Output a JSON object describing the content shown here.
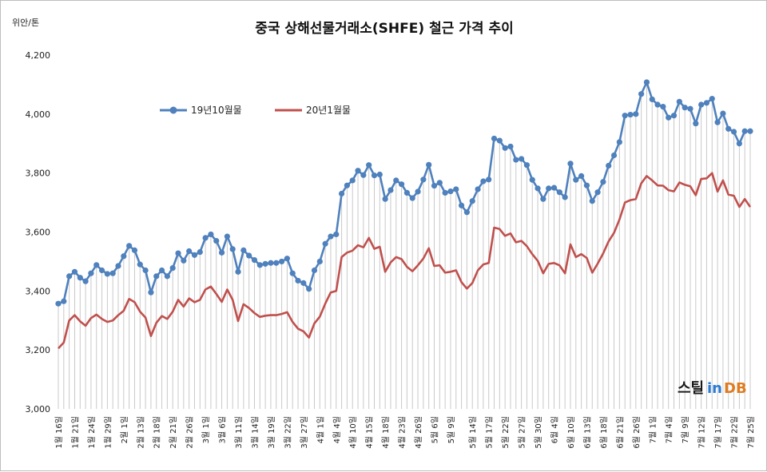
{
  "chart_data": {
    "type": "line",
    "title": "중국 상해선물거래소(SHFE) 철근 가격 추이",
    "ylabel": "위안/톤",
    "xlabel": "",
    "ylim": [
      3000,
      4200
    ],
    "yticks": [
      3000,
      3200,
      3400,
      3600,
      3800,
      4000,
      4200
    ],
    "ytick_labels": [
      "3,000",
      "3,200",
      "3,400",
      "3,600",
      "3,800",
      "4,000",
      "4,200"
    ],
    "grid": "vertical drop lines from series 1 points",
    "legend_position": "top-left",
    "x_tick_labels": [
      "1월 16일",
      "1월 21일",
      "1월 24일",
      "1월 29일",
      "2월 1일",
      "2월 13일",
      "2월 18일",
      "2월 21일",
      "2월 26일",
      "3월 1일",
      "3월 6일",
      "3월 11일",
      "3월 14일",
      "3월 19일",
      "3월 22일",
      "3월 27일",
      "4월 1일",
      "4월 4일",
      "4월 10일",
      "4월 15일",
      "4월 18일",
      "4월 23일",
      "4월 26일",
      "5월 6일",
      "5월 9일",
      "5월 14일",
      "5월 17일",
      "5월 22일",
      "5월 27일",
      "5월 30일",
      "6월 4일",
      "6월 10일",
      "6월 13일",
      "6월 18일",
      "6월 21일",
      "6월 26일",
      "7월 1일",
      "7월 4일",
      "7월 9일",
      "7월 12일",
      "7월 17일",
      "7월 22일",
      "7월 25일"
    ],
    "series": [
      {
        "name": "19년10월물",
        "color": "#4f81bd",
        "values": [
          3357,
          3365,
          3450,
          3465,
          3445,
          3433,
          3460,
          3488,
          3470,
          3458,
          3460,
          3485,
          3518,
          3553,
          3538,
          3490,
          3470,
          3395,
          3450,
          3470,
          3450,
          3478,
          3528,
          3503,
          3535,
          3522,
          3532,
          3580,
          3592,
          3570,
          3530,
          3585,
          3542,
          3465,
          3538,
          3520,
          3505,
          3488,
          3492,
          3495,
          3495,
          3500,
          3510,
          3460,
          3435,
          3427,
          3407,
          3470,
          3500,
          3560,
          3585,
          3592,
          3730,
          3758,
          3775,
          3808,
          3793,
          3827,
          3792,
          3795,
          3712,
          3742,
          3775,
          3762,
          3733,
          3715,
          3737,
          3778,
          3828,
          3757,
          3767,
          3733,
          3738,
          3745,
          3690,
          3667,
          3705,
          3745,
          3772,
          3778,
          3917,
          3910,
          3885,
          3890,
          3845,
          3848,
          3827,
          3777,
          3748,
          3712,
          3748,
          3750,
          3735,
          3718,
          3832,
          3777,
          3790,
          3758,
          3705,
          3735,
          3770,
          3825,
          3860,
          3905,
          3995,
          3998,
          4000,
          4068,
          4108,
          4050,
          4032,
          4025,
          3988,
          3995,
          4042,
          4022,
          4018,
          3968,
          4032,
          4038,
          4052,
          3972,
          4002,
          3950,
          3940,
          3900,
          3942,
          3942
        ]
      },
      {
        "name": "20년1월물",
        "color": "#c0504d",
        "values": [
          3205,
          3225,
          3300,
          3318,
          3297,
          3282,
          3308,
          3320,
          3305,
          3295,
          3300,
          3318,
          3333,
          3373,
          3362,
          3330,
          3310,
          3247,
          3292,
          3315,
          3305,
          3330,
          3370,
          3347,
          3375,
          3362,
          3370,
          3405,
          3415,
          3390,
          3363,
          3405,
          3370,
          3298,
          3355,
          3342,
          3325,
          3312,
          3316,
          3318,
          3318,
          3322,
          3328,
          3295,
          3272,
          3263,
          3242,
          3290,
          3313,
          3357,
          3395,
          3400,
          3515,
          3530,
          3537,
          3555,
          3548,
          3580,
          3543,
          3550,
          3465,
          3497,
          3515,
          3508,
          3482,
          3467,
          3487,
          3510,
          3545,
          3485,
          3487,
          3462,
          3465,
          3470,
          3430,
          3408,
          3427,
          3470,
          3490,
          3495,
          3615,
          3610,
          3587,
          3595,
          3565,
          3570,
          3552,
          3525,
          3502,
          3460,
          3492,
          3495,
          3487,
          3460,
          3558,
          3515,
          3525,
          3512,
          3462,
          3493,
          3527,
          3568,
          3597,
          3642,
          3700,
          3708,
          3712,
          3765,
          3790,
          3775,
          3758,
          3757,
          3742,
          3738,
          3768,
          3760,
          3755,
          3725,
          3780,
          3782,
          3800,
          3737,
          3775,
          3727,
          3723,
          3685,
          3712,
          3685
        ]
      }
    ]
  },
  "logo": {
    "text_a": "스틸",
    "text_b": "in",
    "text_c": "DB"
  }
}
